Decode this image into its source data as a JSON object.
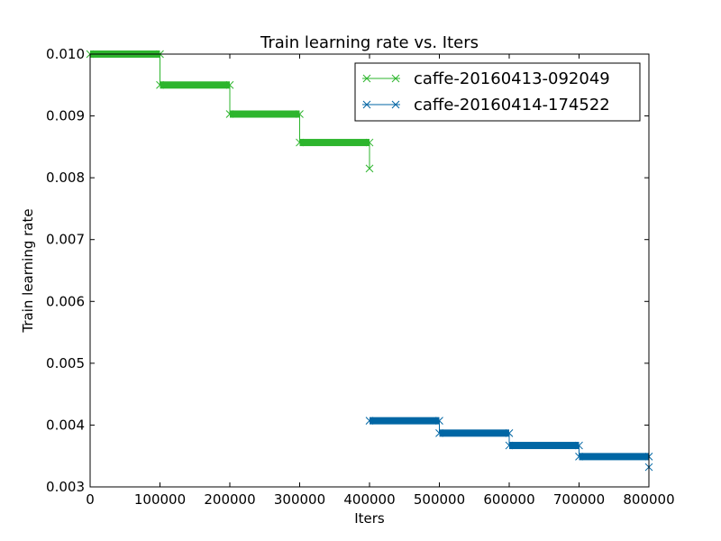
{
  "chart_data": {
    "type": "line",
    "title": "Train learning rate  vs. Iters",
    "xlabel": "Iters",
    "ylabel": "Train learning rate",
    "xlim": [
      0,
      800000
    ],
    "ylim": [
      0.003,
      0.01
    ],
    "xticks": [
      0,
      100000,
      200000,
      300000,
      400000,
      500000,
      600000,
      700000,
      800000
    ],
    "xtick_labels": [
      "0",
      "100000",
      "200000",
      "300000",
      "400000",
      "500000",
      "600000",
      "700000",
      "800000"
    ],
    "yticks": [
      0.003,
      0.004,
      0.005,
      0.006,
      0.007,
      0.008,
      0.009,
      0.01
    ],
    "ytick_labels": [
      "0.003",
      "0.004",
      "0.005",
      "0.006",
      "0.007",
      "0.008",
      "0.009",
      "0.010"
    ],
    "grid": false,
    "legend_position": "top-right",
    "marker": "x",
    "series": [
      {
        "name": "caffe-20160413-092049",
        "color": "#2db52d",
        "steps": [
          {
            "x_start": 0,
            "x_end": 100000,
            "y": 0.01
          },
          {
            "x_start": 100000,
            "x_end": 200000,
            "y": 0.0095
          },
          {
            "x_start": 200000,
            "x_end": 300000,
            "y": 0.00903
          },
          {
            "x_start": 300000,
            "x_end": 400000,
            "y": 0.00857
          }
        ],
        "end_point": {
          "x": 400000,
          "y": 0.00815
        }
      },
      {
        "name": "caffe-20160414-174522",
        "color": "#0066a4",
        "steps": [
          {
            "x_start": 400000,
            "x_end": 500000,
            "y": 0.00407
          },
          {
            "x_start": 500000,
            "x_end": 600000,
            "y": 0.00387
          },
          {
            "x_start": 600000,
            "x_end": 700000,
            "y": 0.00367
          },
          {
            "x_start": 700000,
            "x_end": 800000,
            "y": 0.00349
          }
        ],
        "end_point": {
          "x": 800000,
          "y": 0.00332
        }
      }
    ]
  }
}
